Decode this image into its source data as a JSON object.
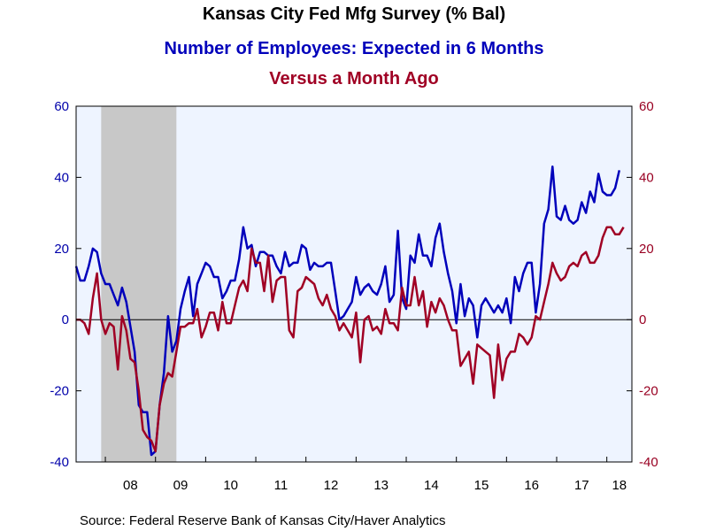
{
  "chart_data": {
    "type": "line",
    "title": "Kansas City Fed Mfg Survey (% Bal)",
    "subtitle": "Number of Employees: Expected in 6 Months",
    "subtitle2": "Versus a Month Ago",
    "source": "Source:  Federal Reserve Bank of Kansas City/Haver Analytics",
    "ylim": [
      -40,
      60
    ],
    "y_ticks": [
      "60",
      "40",
      "20",
      "0",
      "-20",
      "-40"
    ],
    "x_tick_labels": [
      "08",
      "09",
      "10",
      "11",
      "12",
      "13",
      "14",
      "15",
      "16",
      "17",
      "18"
    ],
    "x_range": [
      "2007-06",
      "2018-07"
    ],
    "recession": [
      "2007-12",
      "2009-06"
    ],
    "grid": false,
    "zero_line": true,
    "colors": {
      "series1": "#0000bb",
      "series2": "#a00024",
      "recession": "#c8c8c8",
      "plot_bg": "#eef4ff"
    },
    "series": [
      {
        "name": "Number of Employees: Expected in 6 Months",
        "color": "#0000bb",
        "start": "2007-06",
        "values": [
          15,
          11,
          11,
          15,
          20,
          19,
          13,
          10,
          10,
          7,
          4,
          9,
          5,
          -2,
          -9,
          -24,
          -26,
          -26,
          -38,
          -37,
          -24,
          -15,
          1,
          -9,
          -6,
          3,
          8,
          12,
          1,
          10,
          13,
          16,
          15,
          12,
          12,
          6,
          8,
          11,
          11,
          17,
          26,
          20,
          21,
          15,
          19,
          19,
          18,
          18,
          15,
          13,
          19,
          15,
          16,
          16,
          21,
          20,
          14,
          16,
          15,
          15,
          16,
          16,
          8,
          0,
          1,
          3,
          5,
          12,
          7,
          9,
          10,
          8,
          7,
          10,
          15,
          5,
          7,
          25,
          6,
          3,
          18,
          16,
          24,
          18,
          18,
          15,
          23,
          27,
          19,
          13,
          8,
          -1,
          10,
          1,
          6,
          4,
          -5,
          4,
          6,
          4,
          2,
          4,
          2,
          6,
          -1,
          12,
          8,
          13,
          16,
          16,
          2,
          10,
          27,
          31,
          43,
          29,
          28,
          32,
          28,
          27,
          28,
          33,
          30,
          36,
          33,
          41,
          36,
          35,
          35,
          37,
          42
        ]
      },
      {
        "name": "Versus a Month Ago",
        "color": "#a00024",
        "start": "2007-06",
        "values": [
          0,
          0,
          -1,
          -4,
          6,
          13,
          0,
          -4,
          -1,
          -2,
          -14,
          1,
          -3,
          -11,
          -12,
          -20,
          -31,
          -33,
          -34,
          -37,
          -24,
          -18,
          -15,
          -16,
          -9,
          -2,
          -2,
          -1,
          -1,
          3,
          -5,
          -2,
          2,
          2,
          -3,
          5,
          -1,
          -1,
          4,
          9,
          11,
          8,
          20,
          16,
          16,
          8,
          18,
          5,
          11,
          12,
          12,
          -3,
          -5,
          8,
          9,
          12,
          11,
          10,
          6,
          4,
          7,
          3,
          1,
          -3,
          -1,
          -3,
          -5,
          2,
          -12,
          0,
          1,
          -3,
          -2,
          -4,
          3,
          -1,
          -1,
          -3,
          9,
          4,
          4,
          12,
          4,
          8,
          -2,
          5,
          2,
          6,
          4,
          0,
          -3,
          -3,
          -13,
          -11,
          -9,
          -18,
          -7,
          -8,
          -9,
          -10,
          -22,
          -7,
          -17,
          -11,
          -9,
          -9,
          -4,
          -5,
          -7,
          -5,
          1,
          0,
          5,
          10,
          16,
          13,
          11,
          12,
          15,
          16,
          15,
          18,
          19,
          16,
          16,
          18,
          23,
          26,
          26,
          24,
          24,
          26
        ]
      }
    ]
  }
}
